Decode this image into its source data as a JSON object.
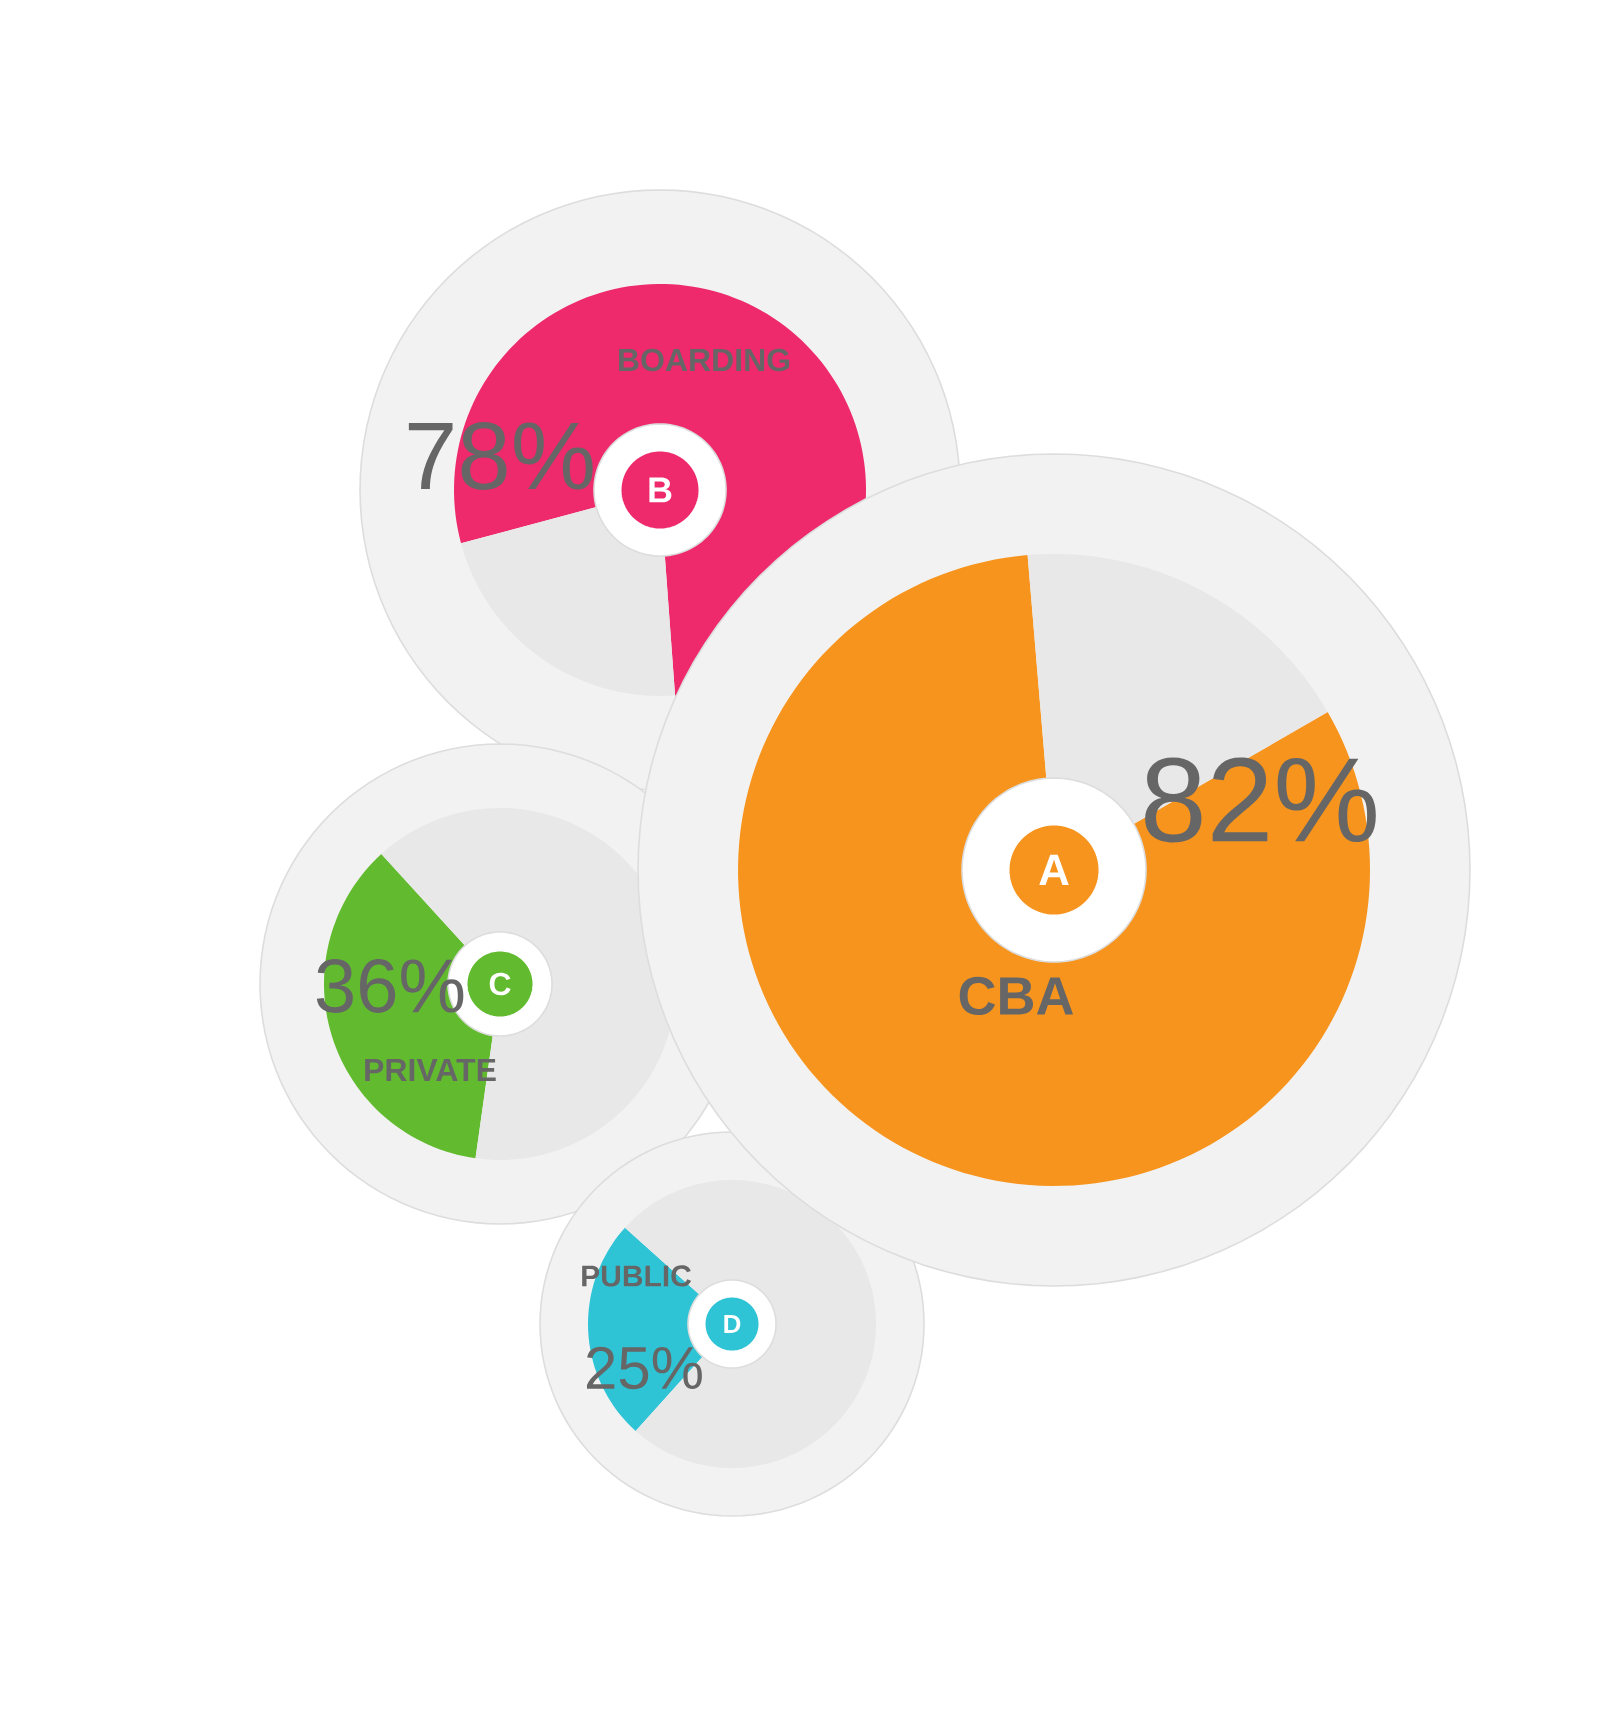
{
  "chart_data": [
    {
      "type": "donut",
      "categories": [
        "BOARDING",
        null
      ],
      "values": [
        78,
        22
      ],
      "colors": [
        "#ee2a6d",
        "#e8e8e8"
      ],
      "value_labels": [
        "78%",
        null
      ],
      "annotations": [
        "B"
      ]
    },
    {
      "type": "donut",
      "categories": [
        "CBA",
        null
      ],
      "values": [
        82,
        18
      ],
      "colors": [
        "#f7941d",
        "#e8e8e8"
      ],
      "value_labels": [
        "82%",
        null
      ],
      "annotations": [
        "A"
      ]
    },
    {
      "type": "donut",
      "categories": [
        "PRIVATE",
        null
      ],
      "values": [
        36,
        64
      ],
      "colors": [
        "#62bb2f",
        "#e8e8e8"
      ],
      "value_labels": [
        "36%",
        null
      ],
      "annotations": [
        "C"
      ]
    },
    {
      "type": "donut",
      "categories": [
        "PUBLIC",
        null
      ],
      "values": [
        25,
        75
      ],
      "colors": [
        "#2ec4d6",
        "#e8e8e8"
      ],
      "value_labels": [
        "25%",
        null
      ],
      "annotations": [
        "D"
      ]
    }
  ]
}
